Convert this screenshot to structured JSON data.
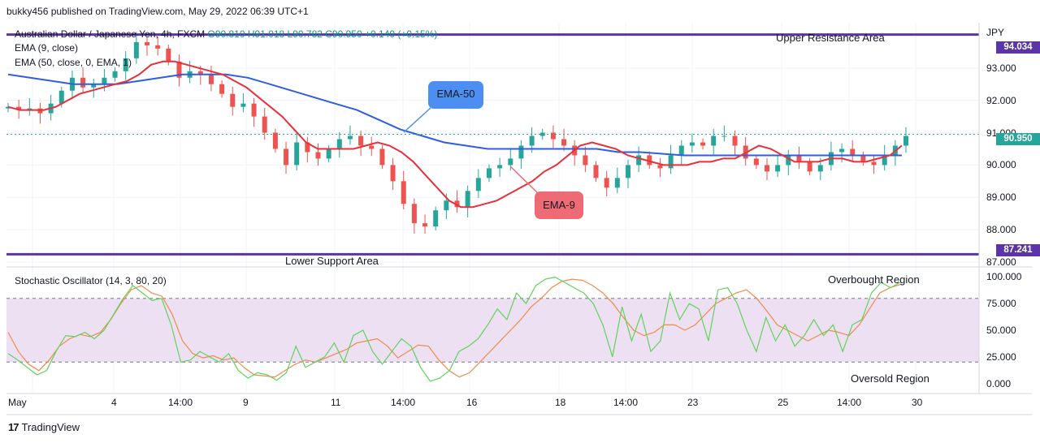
{
  "header": {
    "published": "bukky456 published on TradingView.com, May 29, 2022 06:39 UTC+1"
  },
  "legend": {
    "symbol": "Australian Dollar / Japanese Yen, 4h, FXCM",
    "ohlc": "O90.810 H91.018 L90.782 C90.950 +0.140 (+0.15%)",
    "ema9": "EMA (9, close)",
    "ema50": "EMA (50, close, 0, EMA, 1)",
    "stoch": "Stochastic Oscillator (14, 3, 80, 20)"
  },
  "annotations": {
    "upper": "Upper Resistance Area",
    "lower": "Lower Support Area",
    "overbought": "Overbought Region",
    "oversold": "Oversold Region",
    "ema50_callout": "EMA-50",
    "ema9_callout": "EMA-9"
  },
  "price_axis": {
    "currency": "JPY",
    "labels": [
      "93.000",
      "92.000",
      "91.000",
      "90.000",
      "89.000",
      "88.000",
      "87.000"
    ],
    "tag_upper": "94.034",
    "tag_last": "90.950",
    "tag_lower": "87.241"
  },
  "stoch_axis": {
    "labels": [
      "100.000",
      "75.000",
      "50.000",
      "25.000",
      "0.000"
    ]
  },
  "time_axis": {
    "labels": [
      "May",
      "4",
      "14:00",
      "9",
      "11",
      "14:00",
      "16",
      "18",
      "14:00",
      "23",
      "25",
      "14:00",
      "30"
    ]
  },
  "footer": {
    "brand": "TradingView"
  },
  "colors": {
    "up": "#26a69a",
    "down": "#ef5350",
    "ema9": "#e8303b",
    "ema50": "#2e5fe0",
    "level": "#5b34a8",
    "stoch_k": "#5fd35c",
    "stoch_d": "#f08a4b",
    "band": "#ede0f3",
    "callout_blue": "#4d8ff0",
    "callout_red": "#ee6a74"
  },
  "chart_data": [
    {
      "type": "candlestick",
      "title": "Australian Dollar / Japanese Yen, 4h, FXCM",
      "ylabel": "JPY",
      "ylim": [
        86.9,
        94.4
      ],
      "x_labels": [
        "May",
        "4",
        "14:00",
        "9",
        "11",
        "14:00",
        "16",
        "18",
        "14:00",
        "23",
        "25",
        "14:00",
        "30"
      ],
      "close_path": [
        91.8,
        91.7,
        91.75,
        91.6,
        91.9,
        92.3,
        92.7,
        92.4,
        92.5,
        92.7,
        92.9,
        93.3,
        93.8,
        93.7,
        93.6,
        93.2,
        92.7,
        92.9,
        92.8,
        92.5,
        92.2,
        91.8,
        91.9,
        91.5,
        91.0,
        90.5,
        90.0,
        90.7,
        90.4,
        90.2,
        90.5,
        90.8,
        90.9,
        90.6,
        90.5,
        90.0,
        89.5,
        88.8,
        88.2,
        88.1,
        88.6,
        88.9,
        88.7,
        89.2,
        89.6,
        89.9,
        90.0,
        90.2,
        90.6,
        90.9,
        91.0,
        90.8,
        90.6,
        90.3,
        90.0,
        89.6,
        89.3,
        89.6,
        90.0,
        90.3,
        90.0,
        89.9,
        90.3,
        90.6,
        90.7,
        90.6,
        90.9,
        90.9,
        90.6,
        90.2,
        90.0,
        89.8,
        90.0,
        90.3,
        90.1,
        89.8,
        90.0,
        90.4,
        90.5,
        90.3,
        90.1,
        90.0,
        90.3,
        90.6,
        90.9
      ],
      "last_close": 90.95,
      "levels": {
        "upper_resistance": 94.034,
        "lower_support": 87.241
      },
      "series": [
        {
          "name": "EMA (9, close)",
          "values": [
            91.8,
            91.7,
            91.7,
            91.7,
            91.8,
            92.0,
            92.2,
            92.3,
            92.4,
            92.5,
            92.6,
            92.8,
            93.1,
            93.2,
            93.2,
            93.1,
            93.0,
            92.9,
            92.8,
            92.6,
            92.4,
            92.1,
            91.8,
            91.5,
            91.1,
            90.7,
            90.5,
            90.5,
            90.5,
            90.5,
            90.6,
            90.7,
            90.6,
            90.4,
            90.1,
            89.7,
            89.3,
            88.9,
            88.7,
            88.7,
            88.8,
            88.9,
            89.1,
            89.3,
            89.5,
            89.8,
            90.0,
            90.3,
            90.6,
            90.7,
            90.6,
            90.5,
            90.3,
            90.2,
            90.1,
            90.0,
            90.0,
            90.0,
            90.1,
            90.1,
            90.2,
            90.2,
            90.4,
            90.6,
            90.5,
            90.3,
            90.1,
            90.1,
            90.1,
            90.2,
            90.2,
            90.1,
            90.1,
            90.2,
            90.3,
            90.6
          ]
        },
        {
          "name": "EMA (50, close, 0, EMA, 1)",
          "values": [
            92.8,
            92.7,
            92.6,
            92.5,
            92.5,
            92.5,
            92.6,
            92.7,
            92.8,
            92.8,
            92.8,
            92.7,
            92.5,
            92.3,
            92.1,
            91.9,
            91.7,
            91.4,
            91.1,
            90.9,
            90.7,
            90.6,
            90.5,
            90.5,
            90.5,
            90.5,
            90.5,
            90.5,
            90.4,
            90.4,
            90.35,
            90.3,
            90.3,
            90.3,
            90.3,
            90.3,
            90.3,
            90.3,
            90.3,
            90.3,
            90.3,
            90.3
          ]
        }
      ]
    },
    {
      "type": "line",
      "title": "Stochastic Oscillator (14, 3, 80, 20)",
      "ylim": [
        -8,
        108
      ],
      "bands": {
        "upper": 80,
        "lower": 20
      },
      "series": [
        {
          "name": "%K",
          "values": [
            28,
            22,
            15,
            8,
            12,
            30,
            45,
            44,
            48,
            42,
            50,
            65,
            80,
            92,
            85,
            78,
            80,
            55,
            20,
            22,
            30,
            25,
            20,
            28,
            12,
            5,
            10,
            8,
            3,
            10,
            35,
            15,
            20,
            25,
            38,
            20,
            45,
            50,
            30,
            18,
            30,
            42,
            35,
            15,
            2,
            5,
            12,
            30,
            35,
            42,
            55,
            70,
            60,
            85,
            75,
            92,
            98,
            100,
            95,
            90,
            85,
            75,
            55,
            25,
            72,
            40,
            65,
            30,
            40,
            85,
            60,
            75,
            70,
            40,
            88,
            90,
            75,
            50,
            30,
            62,
            40,
            55,
            35,
            45,
            60,
            45,
            55,
            30,
            55,
            60,
            85,
            95,
            90,
            95
          ]
        },
        {
          "name": "%D",
          "values": [
            48,
            30,
            18,
            12,
            22,
            35,
            42,
            46,
            44,
            48,
            60,
            75,
            88,
            92,
            85,
            82,
            65,
            40,
            28,
            24,
            26,
            22,
            24,
            15,
            8,
            7,
            6,
            12,
            18,
            22,
            20,
            24,
            28,
            32,
            38,
            40,
            42,
            35,
            24,
            30,
            36,
            35,
            22,
            12,
            6,
            10,
            20,
            30,
            40,
            50,
            60,
            72,
            80,
            90,
            96,
            98,
            97,
            92,
            85,
            75,
            62,
            50,
            45,
            48,
            55,
            55,
            50,
            55,
            65,
            75,
            80,
            85,
            88,
            80,
            68,
            55,
            50,
            45,
            40,
            45,
            50,
            48,
            45,
            55,
            70,
            85,
            90,
            93
          ]
        }
      ]
    }
  ]
}
